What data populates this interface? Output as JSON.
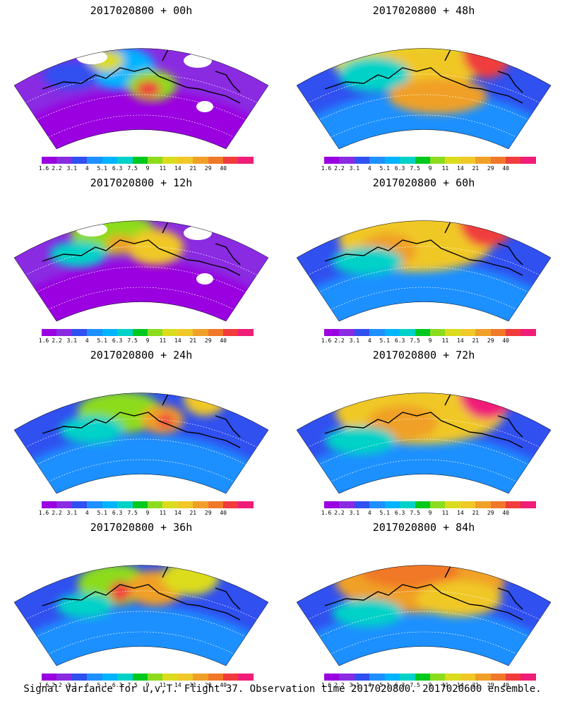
{
  "panels": [
    {
      "title": "2017020800 + 00h"
    },
    {
      "title": "2017020800 + 48h"
    },
    {
      "title": "2017020800 + 12h"
    },
    {
      "title": "2017020800 + 60h"
    },
    {
      "title": "2017020800 + 24h"
    },
    {
      "title": "2017020800 + 72h"
    },
    {
      "title": "2017020800 + 36h"
    },
    {
      "title": "2017020800 + 84h"
    }
  ],
  "colorbar": {
    "labels": [
      "1.6",
      "2.2",
      "3.1",
      "4",
      "5.1",
      "6.3",
      "7.5",
      "9",
      "11",
      "14",
      "21",
      "29",
      "40"
    ],
    "colors": [
      "#9a00e0",
      "#8a2be2",
      "#3050f0",
      "#1e90ff",
      "#00b4ff",
      "#00d2c8",
      "#00c81e",
      "#8cdc1e",
      "#dcdc1e",
      "#f0c828",
      "#f0a028",
      "#f07828",
      "#f03c3c",
      "#f01e78"
    ]
  },
  "caption": "Signal Variance for u,v,T. Flight 37. Observation time 2017020800. 2017020600 ensemble."
}
